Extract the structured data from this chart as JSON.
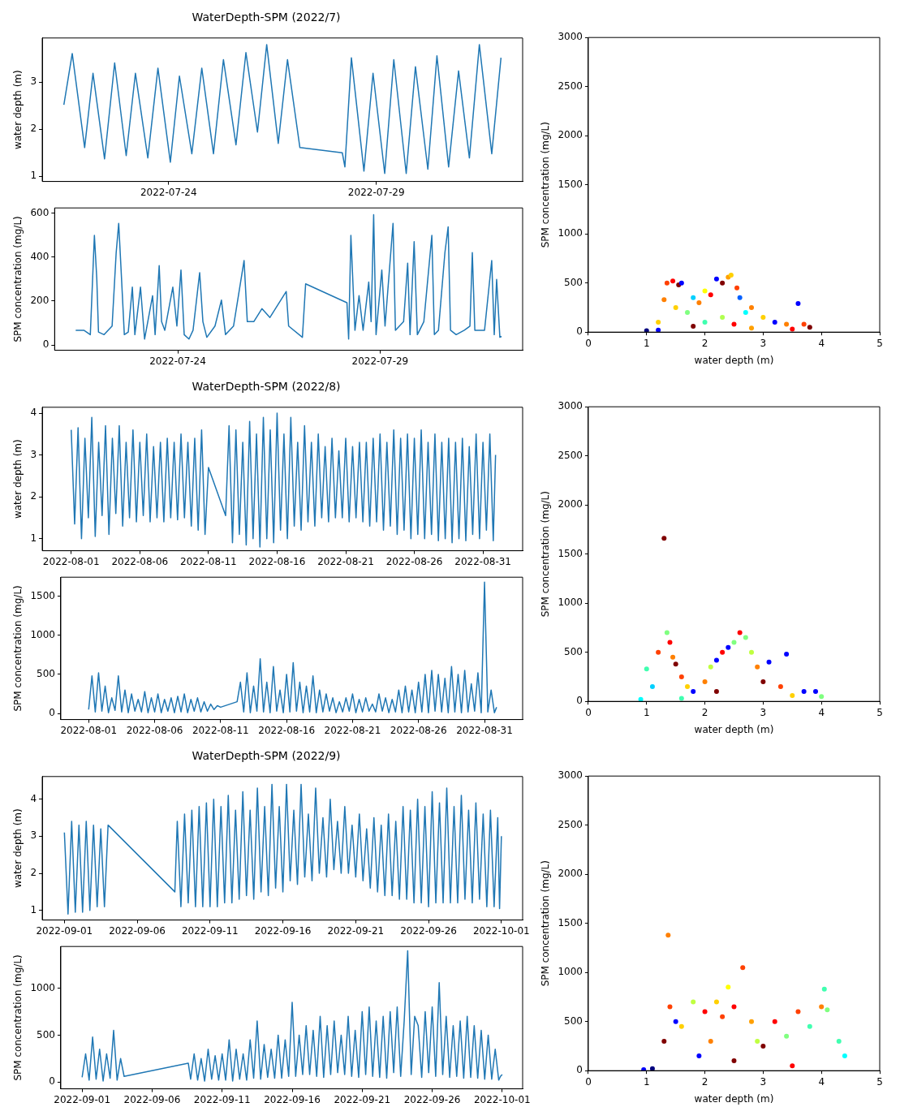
{
  "chart_data": [
    {
      "type": "line",
      "title": "WaterDepth-SPM (2022/7)",
      "ylabel": "water depth (m)",
      "color": "#1f77b4",
      "xlim": [
        "2022-07-20T23:00",
        "2022-08-01T12:30"
      ],
      "xticks": [
        "2022-07-24",
        "2022-07-29"
      ],
      "ylim": [
        0.89,
        3.94
      ],
      "yticks": [
        1,
        2,
        3
      ],
      "x": [
        "2022-07-21T11:30",
        "2022-07-21T16:20",
        "2022-07-21T23:30",
        "2022-07-22T04:20",
        "2022-07-22T11:00",
        "2022-07-22T16:50",
        "2022-07-22T23:30",
        "2022-07-23T04:50",
        "2022-07-23T12:00",
        "2022-07-23T17:50",
        "2022-07-24T01:00",
        "2022-07-24T06:15",
        "2022-07-24T13:25",
        "2022-07-24T19:10",
        "2022-07-25T01:55",
        "2022-07-25T07:40",
        "2022-07-25T14:55",
        "2022-07-25T20:40",
        "2022-07-26T03:20",
        "2022-07-26T08:40",
        "2022-07-26T15:20",
        "2022-07-26T20:40",
        "2022-07-27T03:50",
        "2022-07-28T04:20",
        "2022-07-28T05:50",
        "2022-07-28T09:35",
        "2022-07-28T16:50",
        "2022-07-28T22:05",
        "2022-07-29T04:50",
        "2022-07-29T10:05",
        "2022-07-29T17:15",
        "2022-07-29T22:35",
        "2022-07-30T05:45",
        "2022-07-30T11:00",
        "2022-07-30T17:45",
        "2022-07-30T23:30",
        "2022-07-31T05:45",
        "2022-07-31T11:30",
        "2022-07-31T18:40",
        "2022-08-01T00:00"
      ],
      "values": [
        2.52,
        3.61,
        1.61,
        3.19,
        1.37,
        3.41,
        1.44,
        3.19,
        1.39,
        3.3,
        1.3,
        3.13,
        1.48,
        3.3,
        1.48,
        3.48,
        1.67,
        3.63,
        1.94,
        3.8,
        1.7,
        3.48,
        1.61,
        1.5,
        1.2,
        3.52,
        1.11,
        3.19,
        1.06,
        3.48,
        1.06,
        3.33,
        1.15,
        3.56,
        1.2,
        3.24,
        1.39,
        3.8,
        1.48,
        3.52
      ]
    },
    {
      "type": "line",
      "ylabel": "SPM concentration (mg/L)",
      "color": "#1f77b4",
      "xlim": [
        "2022-07-20T23:00",
        "2022-08-01T12:30"
      ],
      "xticks": [
        "2022-07-24",
        "2022-07-29"
      ],
      "ylim": [
        -24,
        623
      ],
      "yticks": [
        0,
        200,
        400,
        600
      ],
      "x": [
        "2022-07-21T11:30",
        "2022-07-21T16:20",
        "2022-07-21T20:10",
        "2022-07-21T22:35",
        "2022-07-22T00:00",
        "2022-07-22T01:00",
        "2022-07-22T04:20",
        "2022-07-22T09:05",
        "2022-07-22T11:30",
        "2022-07-22T13:00",
        "2022-07-22T14:25",
        "2022-07-22T16:20",
        "2022-07-22T18:40",
        "2022-07-22T21:05",
        "2022-07-22T22:35",
        "2022-07-23T01:55",
        "2022-07-23T04:20",
        "2022-07-23T09:05",
        "2022-07-23T10:35",
        "2022-07-23T13:00",
        "2022-07-23T14:25",
        "2022-07-23T16:20",
        "2022-07-23T21:05",
        "2022-07-23T23:30",
        "2022-07-24T01:55",
        "2022-07-24T03:50",
        "2022-07-24T06:40",
        "2022-07-24T09:05",
        "2022-07-24T13:00",
        "2022-07-24T14:55",
        "2022-07-24T17:15",
        "2022-07-24T22:05",
        "2022-07-25T01:55",
        "2022-07-25T04:20",
        "2022-07-25T09:05",
        "2022-07-25T15:20",
        "2022-07-25T17:15",
        "2022-07-25T21:05",
        "2022-07-26T01:55",
        "2022-07-26T06:40",
        "2022-07-26T16:20",
        "2022-07-26T17:45",
        "2022-07-27T01:55",
        "2022-07-27T03:50",
        "2022-07-28T04:20",
        "2022-07-28T05:20",
        "2022-07-28T06:40",
        "2022-07-28T09:05",
        "2022-07-28T11:30",
        "2022-07-28T13:55",
        "2022-07-28T17:15",
        "2022-07-28T18:40",
        "2022-07-28T20:10",
        "2022-07-28T21:35",
        "2022-07-29T01:00",
        "2022-07-29T02:55",
        "2022-07-29T07:40",
        "2022-07-29T09:05",
        "2022-07-29T13:55",
        "2022-07-29T16:20",
        "2022-07-29T17:45",
        "2022-07-29T20:10",
        "2022-07-29T22:05",
        "2022-07-30T01:55",
        "2022-07-30T06:40",
        "2022-07-30T08:10",
        "2022-07-30T10:35",
        "2022-07-30T14:25",
        "2022-07-30T16:20",
        "2022-07-30T17:45",
        "2022-07-30T21:05",
        "2022-07-31T01:55",
        "2022-07-31T05:15",
        "2022-07-31T06:40",
        "2022-07-31T08:10",
        "2022-07-31T13:55",
        "2022-07-31T18:10",
        "2022-07-31T19:40",
        "2022-07-31T21:05",
        "2022-07-31T23:00",
        "2022-08-01T00:00"
      ],
      "values": [
        67,
        67,
        47,
        498,
        302,
        59,
        47,
        86,
        420,
        553,
        341,
        47,
        59,
        263,
        47,
        263,
        27,
        224,
        47,
        361,
        106,
        67,
        263,
        86,
        341,
        47,
        27,
        67,
        329,
        106,
        35,
        86,
        204,
        47,
        86,
        384,
        106,
        106,
        165,
        125,
        243,
        86,
        35,
        278,
        192,
        27,
        498,
        67,
        224,
        67,
        286,
        106,
        592,
        47,
        341,
        86,
        553,
        67,
        106,
        372,
        47,
        470,
        47,
        106,
        498,
        47,
        67,
        420,
        537,
        67,
        47,
        67,
        86,
        420,
        67,
        67,
        384,
        47,
        298,
        35,
        39
      ]
    },
    {
      "type": "scatter",
      "marker": "circle",
      "xlabel": "water depth (m)",
      "ylabel": "SPM concentration (mg/L)",
      "xlim": [
        0,
        5
      ],
      "xticks": [
        0,
        1,
        2,
        3,
        4,
        5
      ],
      "ylim": [
        0,
        3000
      ],
      "yticks": [
        0,
        500,
        1000,
        1500,
        2000,
        2500,
        3000
      ],
      "x": [
        1.0,
        1.2,
        1.3,
        1.35,
        1.45,
        1.55,
        1.6,
        1.5,
        1.7,
        1.8,
        1.9,
        2.0,
        2.1,
        2.2,
        2.3,
        2.4,
        2.45,
        2.55,
        2.6,
        2.7,
        2.8,
        2.3,
        2.0,
        2.5,
        3.0,
        3.2,
        3.4,
        3.6,
        3.7,
        3.8,
        3.5,
        2.8,
        1.8,
        1.2
      ],
      "values": [
        15,
        20,
        330,
        500,
        520,
        480,
        500,
        250,
        200,
        350,
        300,
        420,
        380,
        540,
        500,
        560,
        580,
        450,
        350,
        200,
        250,
        150,
        100,
        80,
        150,
        100,
        80,
        290,
        80,
        50,
        30,
        40,
        60,
        100
      ],
      "colors": [
        "#00007f",
        "#0000ff",
        "#ff8000",
        "#ff4000",
        "#ff0000",
        "#7f0000",
        "#0000ff",
        "#ffd000",
        "#80ff80",
        "#00d0ff",
        "#ff8000",
        "#ffff00",
        "#ff0000",
        "#0000ff",
        "#800000",
        "#ffa000",
        "#ffd000",
        "#ff4000",
        "#0060ff",
        "#00ffff",
        "#ff8000",
        "#b0ff50",
        "#40ffb0",
        "#ff0000",
        "#ffd000",
        "#0000ff",
        "#ff8000",
        "#0000ff",
        "#ff4000",
        "#7f0000",
        "#ff0000",
        "#ffa000",
        "#7f0000",
        "#ffd000"
      ]
    },
    {
      "type": "line",
      "title": "WaterDepth-SPM (2022/8)",
      "ylabel": "water depth (m)",
      "color": "#1f77b4",
      "xlim": [
        "2022-07-29T21:20",
        "2022-09-02T21:20"
      ],
      "xticks": [
        "2022-08-01",
        "2022-08-06",
        "2022-08-11",
        "2022-08-16",
        "2022-08-21",
        "2022-08-26",
        "2022-08-31"
      ],
      "ylim": [
        0.71,
        4.14
      ],
      "yticks": [
        1,
        2,
        3,
        4
      ],
      "x": [
        "2022-08-01T00:00",
        "2022-08-01T06:00",
        "2022-08-01T12:00",
        "2022-08-01T18:00",
        "2022-08-02T00:00",
        "2022-08-02T06:00",
        "2022-08-02T12:00",
        "2022-08-02T18:00",
        "2022-08-03T00:00",
        "2022-08-03T06:00",
        "2022-08-03T12:00",
        "2022-08-03T18:00",
        "2022-08-04T00:00",
        "2022-08-04T06:00",
        "2022-08-04T12:00",
        "2022-08-04T18:00",
        "2022-08-05T00:00",
        "2022-08-05T06:00",
        "2022-08-05T12:00",
        "2022-08-05T18:00",
        "2022-08-06T00:00",
        "2022-08-06T06:00",
        "2022-08-06T12:00",
        "2022-08-06T18:00",
        "2022-08-07T00:00",
        "2022-08-07T06:00",
        "2022-08-07T12:00",
        "2022-08-07T18:00",
        "2022-08-08T00:00",
        "2022-08-08T06:00",
        "2022-08-08T12:00",
        "2022-08-08T18:00",
        "2022-08-09T00:00",
        "2022-08-09T06:00",
        "2022-08-09T12:00",
        "2022-08-09T18:00",
        "2022-08-10T00:00",
        "2022-08-10T06:00",
        "2022-08-10T12:00",
        "2022-08-10T18:00",
        "2022-08-11T00:00",
        "2022-08-12T06:00",
        "2022-08-12T12:00",
        "2022-08-12T18:00",
        "2022-08-13T00:00",
        "2022-08-13T06:00",
        "2022-08-13T12:00",
        "2022-08-13T18:00",
        "2022-08-14T00:00",
        "2022-08-14T06:00",
        "2022-08-14T12:00",
        "2022-08-14T18:00",
        "2022-08-15T00:00",
        "2022-08-15T06:00",
        "2022-08-15T12:00",
        "2022-08-15T18:00",
        "2022-08-16T00:00",
        "2022-08-16T06:00",
        "2022-08-16T12:00",
        "2022-08-16T18:00",
        "2022-08-17T00:00",
        "2022-08-17T06:00",
        "2022-08-17T12:00",
        "2022-08-17T18:00",
        "2022-08-18T00:00",
        "2022-08-18T06:00",
        "2022-08-18T12:00",
        "2022-08-18T18:00",
        "2022-08-19T00:00",
        "2022-08-19T06:00",
        "2022-08-19T12:00",
        "2022-08-19T18:00",
        "2022-08-20T00:00",
        "2022-08-20T06:00",
        "2022-08-20T12:00",
        "2022-08-20T18:00",
        "2022-08-21T00:00",
        "2022-08-21T06:00",
        "2022-08-21T12:00",
        "2022-08-21T18:00",
        "2022-08-22T00:00",
        "2022-08-22T06:00",
        "2022-08-22T12:00",
        "2022-08-22T18:00",
        "2022-08-23T00:00",
        "2022-08-23T06:00",
        "2022-08-23T12:00",
        "2022-08-23T18:00",
        "2022-08-24T00:00",
        "2022-08-24T06:00",
        "2022-08-24T12:00",
        "2022-08-24T18:00",
        "2022-08-25T00:00",
        "2022-08-25T06:00",
        "2022-08-25T12:00",
        "2022-08-25T18:00",
        "2022-08-26T00:00",
        "2022-08-26T06:00",
        "2022-08-26T12:00",
        "2022-08-26T18:00",
        "2022-08-27T00:00",
        "2022-08-27T06:00",
        "2022-08-27T12:00",
        "2022-08-27T18:00",
        "2022-08-28T00:00",
        "2022-08-28T06:00",
        "2022-08-28T12:00",
        "2022-08-28T18:00",
        "2022-08-29T00:00",
        "2022-08-29T06:00",
        "2022-08-29T12:00",
        "2022-08-29T18:00",
        "2022-08-30T00:00",
        "2022-08-30T06:00",
        "2022-08-30T12:00",
        "2022-08-30T18:00",
        "2022-08-31T00:00",
        "2022-08-31T06:00",
        "2022-08-31T12:00",
        "2022-08-31T18:00",
        "2022-08-31T22:00"
      ],
      "values": [
        3.6,
        1.35,
        3.65,
        1.0,
        3.4,
        1.5,
        3.9,
        1.05,
        3.3,
        1.55,
        3.7,
        1.1,
        3.4,
        1.6,
        3.7,
        1.3,
        3.3,
        1.5,
        3.6,
        1.4,
        3.3,
        1.55,
        3.5,
        1.4,
        3.2,
        1.5,
        3.3,
        1.4,
        3.4,
        1.5,
        3.3,
        1.45,
        3.5,
        1.5,
        3.3,
        1.3,
        3.4,
        1.2,
        3.6,
        1.1,
        2.7,
        1.55,
        3.7,
        0.9,
        3.6,
        1.1,
        3.3,
        0.85,
        3.8,
        1.0,
        3.5,
        0.8,
        3.9,
        1.0,
        3.6,
        0.9,
        4.0,
        1.2,
        3.5,
        1.0,
        3.9,
        1.3,
        3.3,
        1.2,
        3.7,
        1.4,
        3.3,
        1.3,
        3.5,
        1.5,
        3.2,
        1.4,
        3.4,
        1.5,
        3.1,
        1.5,
        3.4,
        1.4,
        3.2,
        1.5,
        3.3,
        1.4,
        3.3,
        1.3,
        3.4,
        1.4,
        3.5,
        1.2,
        3.3,
        1.3,
        3.6,
        1.1,
        3.4,
        1.2,
        3.5,
        1.0,
        3.4,
        1.1,
        3.6,
        1.0,
        3.3,
        1.1,
        3.5,
        0.95,
        3.3,
        1.0,
        3.4,
        0.9,
        3.3,
        1.0,
        3.4,
        0.95,
        3.2,
        1.1,
        3.5,
        1.0,
        3.3,
        1.2,
        3.5,
        0.95,
        3.0
      ]
    },
    {
      "type": "line",
      "ylabel": "SPM concentration (mg/L)",
      "color": "#1f77b4",
      "xlim": [
        "2022-07-29T21:20",
        "2022-09-02T21:20"
      ],
      "xticks": [
        "2022-08-01",
        "2022-08-06",
        "2022-08-11",
        "2022-08-16",
        "2022-08-21",
        "2022-08-26",
        "2022-08-31"
      ],
      "ylim": [
        -78,
        1743
      ],
      "yticks": [
        0,
        500,
        1000,
        1500
      ],
      "x": [
        "2022-08-01T00:00",
        "2022-08-01T06:00",
        "2022-08-01T12:00",
        "2022-08-01T18:00",
        "2022-08-02T00:00",
        "2022-08-02T06:00",
        "2022-08-02T12:00",
        "2022-08-02T18:00",
        "2022-08-03T00:00",
        "2022-08-03T06:00",
        "2022-08-03T12:00",
        "2022-08-03T18:00",
        "2022-08-04T00:00",
        "2022-08-04T06:00",
        "2022-08-04T12:00",
        "2022-08-04T18:00",
        "2022-08-05T00:00",
        "2022-08-05T06:00",
        "2022-08-05T12:00",
        "2022-08-05T18:00",
        "2022-08-06T00:00",
        "2022-08-06T06:00",
        "2022-08-06T12:00",
        "2022-08-06T18:00",
        "2022-08-07T00:00",
        "2022-08-07T06:00",
        "2022-08-07T12:00",
        "2022-08-07T18:00",
        "2022-08-08T00:00",
        "2022-08-08T06:00",
        "2022-08-08T12:00",
        "2022-08-08T18:00",
        "2022-08-09T00:00",
        "2022-08-09T06:00",
        "2022-08-09T12:00",
        "2022-08-09T18:00",
        "2022-08-10T00:00",
        "2022-08-10T06:00",
        "2022-08-10T12:00",
        "2022-08-10T18:00",
        "2022-08-11T00:00",
        "2022-08-12T06:00",
        "2022-08-12T12:00",
        "2022-08-12T18:00",
        "2022-08-13T00:00",
        "2022-08-13T06:00",
        "2022-08-13T12:00",
        "2022-08-13T18:00",
        "2022-08-14T00:00",
        "2022-08-14T06:00",
        "2022-08-14T12:00",
        "2022-08-14T18:00",
        "2022-08-15T00:00",
        "2022-08-15T06:00",
        "2022-08-15T12:00",
        "2022-08-15T18:00",
        "2022-08-16T00:00",
        "2022-08-16T06:00",
        "2022-08-16T12:00",
        "2022-08-16T18:00",
        "2022-08-17T00:00",
        "2022-08-17T06:00",
        "2022-08-17T12:00",
        "2022-08-17T18:00",
        "2022-08-18T00:00",
        "2022-08-18T06:00",
        "2022-08-18T12:00",
        "2022-08-18T18:00",
        "2022-08-19T00:00",
        "2022-08-19T06:00",
        "2022-08-19T12:00",
        "2022-08-19T18:00",
        "2022-08-20T00:00",
        "2022-08-20T06:00",
        "2022-08-20T12:00",
        "2022-08-20T18:00",
        "2022-08-21T00:00",
        "2022-08-21T06:00",
        "2022-08-21T12:00",
        "2022-08-21T18:00",
        "2022-08-22T00:00",
        "2022-08-22T06:00",
        "2022-08-22T12:00",
        "2022-08-22T18:00",
        "2022-08-23T00:00",
        "2022-08-23T06:00",
        "2022-08-23T12:00",
        "2022-08-23T18:00",
        "2022-08-24T00:00",
        "2022-08-24T06:00",
        "2022-08-24T12:00",
        "2022-08-24T18:00",
        "2022-08-25T00:00",
        "2022-08-25T06:00",
        "2022-08-25T12:00",
        "2022-08-25T18:00",
        "2022-08-26T00:00",
        "2022-08-26T06:00",
        "2022-08-26T12:00",
        "2022-08-26T18:00",
        "2022-08-27T00:00",
        "2022-08-27T06:00",
        "2022-08-27T12:00",
        "2022-08-27T18:00",
        "2022-08-28T00:00",
        "2022-08-28T06:00",
        "2022-08-28T12:00",
        "2022-08-28T18:00",
        "2022-08-29T00:00",
        "2022-08-29T06:00",
        "2022-08-29T12:00",
        "2022-08-29T18:00",
        "2022-08-30T00:00",
        "2022-08-30T06:00",
        "2022-08-30T12:00",
        "2022-08-30T18:00",
        "2022-08-31T00:00",
        "2022-08-31T06:00",
        "2022-08-31T12:00",
        "2022-08-31T18:00",
        "2022-08-31T22:00"
      ],
      "values": [
        50,
        480,
        20,
        520,
        30,
        350,
        10,
        200,
        40,
        480,
        20,
        300,
        10,
        250,
        30,
        180,
        20,
        280,
        10,
        200,
        20,
        250,
        10,
        180,
        30,
        200,
        10,
        220,
        20,
        250,
        10,
        180,
        30,
        200,
        20,
        150,
        30,
        120,
        50,
        100,
        80,
        150,
        400,
        20,
        520,
        10,
        350,
        30,
        700,
        20,
        400,
        10,
        600,
        30,
        300,
        10,
        500,
        20,
        650,
        30,
        400,
        10,
        350,
        20,
        480,
        10,
        300,
        20,
        250,
        30,
        200,
        10,
        150,
        20,
        200,
        30,
        250,
        10,
        180,
        20,
        200,
        30,
        120,
        20,
        250,
        30,
        200,
        10,
        180,
        20,
        300,
        10,
        350,
        20,
        300,
        10,
        400,
        20,
        500,
        10,
        550,
        30,
        500,
        20,
        450,
        10,
        600,
        20,
        500,
        10,
        550,
        20,
        380,
        30,
        520,
        10,
        1680,
        20,
        300,
        10,
        80
      ]
    },
    {
      "type": "scatter",
      "marker": "circle",
      "xlabel": "water depth (m)",
      "ylabel": "SPM concentration (mg/L)",
      "xlim": [
        0,
        5
      ],
      "xticks": [
        0,
        1,
        2,
        3,
        4,
        5
      ],
      "ylim": [
        0,
        3000
      ],
      "yticks": [
        0,
        500,
        1000,
        1500,
        2000,
        2500,
        3000
      ],
      "x": [
        0.9,
        1.0,
        1.1,
        1.2,
        1.3,
        1.35,
        1.4,
        1.45,
        1.5,
        1.6,
        1.7,
        1.8,
        2.0,
        2.1,
        2.2,
        2.3,
        2.4,
        2.5,
        2.6,
        2.7,
        2.8,
        2.9,
        3.0,
        3.1,
        3.3,
        3.4,
        3.5,
        3.7,
        3.9,
        4.0,
        2.2,
        1.6
      ],
      "values": [
        20,
        330,
        150,
        500,
        1660,
        700,
        600,
        450,
        380,
        250,
        150,
        100,
        200,
        350,
        420,
        500,
        550,
        600,
        700,
        650,
        500,
        350,
        200,
        400,
        150,
        480,
        60,
        100,
        100,
        50,
        100,
        30
      ],
      "colors": [
        "#00ffff",
        "#40ffb0",
        "#00d0ff",
        "#ff4000",
        "#800000",
        "#80ff80",
        "#ff0000",
        "#ff8000",
        "#800000",
        "#ff4000",
        "#ffd000",
        "#0000ff",
        "#ff8000",
        "#c0ff40",
        "#0000ff",
        "#ff0000",
        "#0000ff",
        "#80ff80",
        "#ff0000",
        "#80ff80",
        "#c0ff40",
        "#ff8000",
        "#800000",
        "#0000ff",
        "#ff4000",
        "#0000ff",
        "#ffd000",
        "#0000ff",
        "#0000ff",
        "#80ff80",
        "#800000",
        "#40ffb0"
      ]
    },
    {
      "type": "line",
      "title": "WaterDepth-SPM (2022/9)",
      "ylabel": "water depth (m)",
      "color": "#1f77b4",
      "xlim": [
        "2022-08-30T11:30",
        "2022-10-02T11:00"
      ],
      "xticks": [
        "2022-09-01",
        "2022-09-06",
        "2022-09-11",
        "2022-09-16",
        "2022-09-21",
        "2022-09-26",
        "2022-10-01"
      ],
      "ylim": [
        0.74,
        4.61
      ],
      "yticks": [
        1,
        2,
        3,
        4
      ],
      "x": [
        "2022-09-01T00:00",
        "2022-09-01T06:00",
        "2022-09-01T12:00",
        "2022-09-01T18:00",
        "2022-09-02T00:00",
        "2022-09-02T06:00",
        "2022-09-02T12:00",
        "2022-09-02T18:00",
        "2022-09-03T00:00",
        "2022-09-03T06:00",
        "2022-09-03T12:00",
        "2022-09-03T18:00",
        "2022-09-04T00:00",
        "2022-09-08T14:00",
        "2022-09-08T18:00",
        "2022-09-09T00:00",
        "2022-09-09T06:00",
        "2022-09-09T12:00",
        "2022-09-09T18:00",
        "2022-09-10T00:00",
        "2022-09-10T06:00",
        "2022-09-10T12:00",
        "2022-09-10T18:00",
        "2022-09-11T00:00",
        "2022-09-11T06:00",
        "2022-09-11T12:00",
        "2022-09-11T18:00",
        "2022-09-12T00:00",
        "2022-09-12T06:00",
        "2022-09-12T12:00",
        "2022-09-12T18:00",
        "2022-09-13T00:00",
        "2022-09-13T06:00",
        "2022-09-13T12:00",
        "2022-09-13T18:00",
        "2022-09-14T00:00",
        "2022-09-14T06:00",
        "2022-09-14T12:00",
        "2022-09-14T18:00",
        "2022-09-15T00:00",
        "2022-09-15T06:00",
        "2022-09-15T12:00",
        "2022-09-15T18:00",
        "2022-09-16T00:00",
        "2022-09-16T06:00",
        "2022-09-16T12:00",
        "2022-09-16T18:00",
        "2022-09-17T00:00",
        "2022-09-17T06:00",
        "2022-09-17T12:00",
        "2022-09-17T18:00",
        "2022-09-18T00:00",
        "2022-09-18T06:00",
        "2022-09-18T12:00",
        "2022-09-18T18:00",
        "2022-09-19T00:00",
        "2022-09-19T06:00",
        "2022-09-19T12:00",
        "2022-09-19T18:00",
        "2022-09-20T00:00",
        "2022-09-20T06:00",
        "2022-09-20T12:00",
        "2022-09-20T18:00",
        "2022-09-21T00:00",
        "2022-09-21T06:00",
        "2022-09-21T12:00",
        "2022-09-21T18:00",
        "2022-09-22T00:00",
        "2022-09-22T06:00",
        "2022-09-22T12:00",
        "2022-09-22T18:00",
        "2022-09-23T00:00",
        "2022-09-23T06:00",
        "2022-09-23T12:00",
        "2022-09-23T18:00",
        "2022-09-24T00:00",
        "2022-09-24T06:00",
        "2022-09-24T12:00",
        "2022-09-24T18:00",
        "2022-09-25T00:00",
        "2022-09-25T06:00",
        "2022-09-25T12:00",
        "2022-09-25T18:00",
        "2022-09-26T00:00",
        "2022-09-26T06:00",
        "2022-09-26T12:00",
        "2022-09-26T18:00",
        "2022-09-27T00:00",
        "2022-09-27T06:00",
        "2022-09-27T12:00",
        "2022-09-27T18:00",
        "2022-09-28T00:00",
        "2022-09-28T06:00",
        "2022-09-28T12:00",
        "2022-09-28T18:00",
        "2022-09-29T00:00",
        "2022-09-29T06:00",
        "2022-09-29T12:00",
        "2022-09-29T18:00",
        "2022-09-30T00:00",
        "2022-09-30T06:00",
        "2022-09-30T12:00",
        "2022-09-30T18:00",
        "2022-09-30T21:00",
        "2022-10-01T00:00"
      ],
      "values": [
        3.1,
        0.9,
        3.4,
        0.95,
        3.3,
        0.95,
        3.4,
        1.0,
        3.3,
        1.1,
        3.2,
        1.1,
        3.3,
        1.5,
        3.4,
        1.1,
        3.6,
        1.2,
        3.7,
        1.1,
        3.8,
        1.1,
        3.9,
        1.1,
        4.0,
        1.1,
        3.8,
        1.2,
        4.1,
        1.2,
        3.7,
        1.3,
        4.2,
        1.4,
        3.7,
        1.3,
        4.3,
        1.5,
        3.8,
        1.4,
        4.4,
        1.6,
        3.8,
        1.5,
        4.4,
        1.8,
        3.7,
        1.7,
        4.4,
        1.9,
        3.6,
        1.8,
        4.3,
        2.0,
        3.5,
        1.9,
        4.0,
        2.1,
        3.4,
        2.0,
        3.8,
        2.0,
        3.3,
        1.9,
        3.6,
        1.8,
        3.2,
        1.6,
        3.5,
        1.5,
        3.3,
        1.4,
        3.6,
        1.4,
        3.4,
        1.3,
        3.8,
        1.3,
        3.7,
        1.2,
        4.0,
        1.2,
        3.8,
        1.1,
        4.2,
        1.2,
        3.9,
        1.2,
        4.3,
        1.2,
        3.8,
        1.2,
        4.1,
        1.3,
        3.7,
        1.2,
        3.9,
        1.3,
        3.6,
        1.1,
        3.7,
        1.1,
        3.5,
        1.05,
        3.0
      ]
    },
    {
      "type": "line",
      "ylabel": "SPM concentration (mg/L)",
      "color": "#1f77b4",
      "xlim": [
        "2022-08-30T11:30",
        "2022-10-02T11:00"
      ],
      "xticks": [
        "2022-09-01",
        "2022-09-06",
        "2022-09-11",
        "2022-09-16",
        "2022-09-21",
        "2022-09-26",
        "2022-10-01"
      ],
      "ylim": [
        -73,
        1445
      ],
      "yticks": [
        0,
        500,
        1000
      ],
      "x": [
        "2022-09-01T00:00",
        "2022-09-01T06:00",
        "2022-09-01T12:00",
        "2022-09-01T18:00",
        "2022-09-02T00:00",
        "2022-09-02T06:00",
        "2022-09-02T12:00",
        "2022-09-02T18:00",
        "2022-09-03T00:00",
        "2022-09-03T06:00",
        "2022-09-03T12:00",
        "2022-09-03T18:00",
        "2022-09-04T00:00",
        "2022-09-08T14:00",
        "2022-09-08T18:00",
        "2022-09-09T00:00",
        "2022-09-09T06:00",
        "2022-09-09T12:00",
        "2022-09-09T18:00",
        "2022-09-10T00:00",
        "2022-09-10T06:00",
        "2022-09-10T12:00",
        "2022-09-10T18:00",
        "2022-09-11T00:00",
        "2022-09-11T06:00",
        "2022-09-11T12:00",
        "2022-09-11T18:00",
        "2022-09-12T00:00",
        "2022-09-12T06:00",
        "2022-09-12T12:00",
        "2022-09-12T18:00",
        "2022-09-13T00:00",
        "2022-09-13T06:00",
        "2022-09-13T12:00",
        "2022-09-13T18:00",
        "2022-09-14T00:00",
        "2022-09-14T06:00",
        "2022-09-14T12:00",
        "2022-09-14T18:00",
        "2022-09-15T00:00",
        "2022-09-15T06:00",
        "2022-09-15T12:00",
        "2022-09-15T18:00",
        "2022-09-16T00:00",
        "2022-09-16T06:00",
        "2022-09-16T12:00",
        "2022-09-16T18:00",
        "2022-09-17T00:00",
        "2022-09-17T06:00",
        "2022-09-17T12:00",
        "2022-09-17T18:00",
        "2022-09-18T00:00",
        "2022-09-18T06:00",
        "2022-09-18T12:00",
        "2022-09-18T18:00",
        "2022-09-19T00:00",
        "2022-09-19T06:00",
        "2022-09-19T12:00",
        "2022-09-19T18:00",
        "2022-09-20T00:00",
        "2022-09-20T06:00",
        "2022-09-20T12:00",
        "2022-09-20T18:00",
        "2022-09-21T00:00",
        "2022-09-21T06:00",
        "2022-09-21T12:00",
        "2022-09-21T18:00",
        "2022-09-22T00:00",
        "2022-09-22T06:00",
        "2022-09-22T12:00",
        "2022-09-22T18:00",
        "2022-09-23T00:00",
        "2022-09-23T06:00",
        "2022-09-23T12:00",
        "2022-09-23T18:00",
        "2022-09-24T00:00",
        "2022-09-24T06:00",
        "2022-09-24T12:00",
        "2022-09-24T18:00",
        "2022-09-25T00:00",
        "2022-09-25T06:00",
        "2022-09-25T12:00",
        "2022-09-25T18:00",
        "2022-09-26T00:00",
        "2022-09-26T06:00",
        "2022-09-26T12:00",
        "2022-09-26T18:00",
        "2022-09-27T00:00",
        "2022-09-27T06:00",
        "2022-09-27T12:00",
        "2022-09-27T18:00",
        "2022-09-28T00:00",
        "2022-09-28T06:00",
        "2022-09-28T12:00",
        "2022-09-28T18:00",
        "2022-09-29T00:00",
        "2022-09-29T06:00",
        "2022-09-29T12:00",
        "2022-09-29T18:00",
        "2022-09-30T00:00",
        "2022-09-30T06:00",
        "2022-09-30T12:00",
        "2022-09-30T18:00",
        "2022-09-30T21:00",
        "2022-10-01T00:00"
      ],
      "values": [
        50,
        300,
        20,
        480,
        30,
        350,
        10,
        300,
        40,
        550,
        20,
        250,
        60,
        200,
        30,
        300,
        20,
        250,
        10,
        350,
        30,
        280,
        20,
        300,
        20,
        450,
        10,
        350,
        30,
        300,
        20,
        450,
        40,
        650,
        30,
        400,
        50,
        350,
        40,
        500,
        40,
        450,
        60,
        850,
        60,
        500,
        80,
        600,
        80,
        550,
        60,
        700,
        50,
        600,
        80,
        650,
        100,
        500,
        80,
        700,
        60,
        550,
        50,
        750,
        80,
        800,
        60,
        650,
        50,
        700,
        40,
        750,
        100,
        800,
        60,
        650,
        1400,
        80,
        700,
        600,
        50,
        750,
        100,
        800,
        60,
        1060,
        80,
        700,
        50,
        600,
        60,
        650,
        40,
        700,
        50,
        600,
        40,
        550,
        30,
        500,
        30,
        350,
        20,
        60,
        80
      ]
    },
    {
      "type": "scatter",
      "marker": "circle",
      "xlabel": "water depth (m)",
      "ylabel": "SPM concentration (mg/L)",
      "xlim": [
        0,
        5
      ],
      "xticks": [
        0,
        1,
        2,
        3,
        4,
        5
      ],
      "ylim": [
        0,
        3000
      ],
      "yticks": [
        0,
        500,
        1000,
        1500,
        2000,
        2500,
        3000
      ],
      "x": [
        0.95,
        1.1,
        1.3,
        1.37,
        1.4,
        1.5,
        1.6,
        1.8,
        2.0,
        2.1,
        2.2,
        2.3,
        2.4,
        2.5,
        2.65,
        2.8,
        2.9,
        3.0,
        3.2,
        3.4,
        3.6,
        3.8,
        4.0,
        4.05,
        4.1,
        4.3,
        4.4,
        2.5,
        3.5,
        1.9
      ],
      "values": [
        10,
        20,
        300,
        1380,
        650,
        500,
        450,
        700,
        600,
        300,
        700,
        550,
        850,
        650,
        1050,
        500,
        300,
        250,
        500,
        350,
        600,
        450,
        650,
        830,
        620,
        300,
        150,
        100,
        50,
        150
      ],
      "colors": [
        "#0000ff",
        "#00007f",
        "#800000",
        "#ff8000",
        "#ff4000",
        "#0000ff",
        "#ffd000",
        "#c0ff40",
        "#ff0000",
        "#ff8000",
        "#ffd000",
        "#ff4000",
        "#ffff00",
        "#ff0000",
        "#ff4000",
        "#ffa000",
        "#c0ff40",
        "#800000",
        "#ff0000",
        "#80ff80",
        "#ff4000",
        "#40ffb0",
        "#ff8000",
        "#40ffb0",
        "#80ff80",
        "#40ffb0",
        "#00ffff",
        "#800000",
        "#ff0000",
        "#0000ff"
      ]
    }
  ]
}
